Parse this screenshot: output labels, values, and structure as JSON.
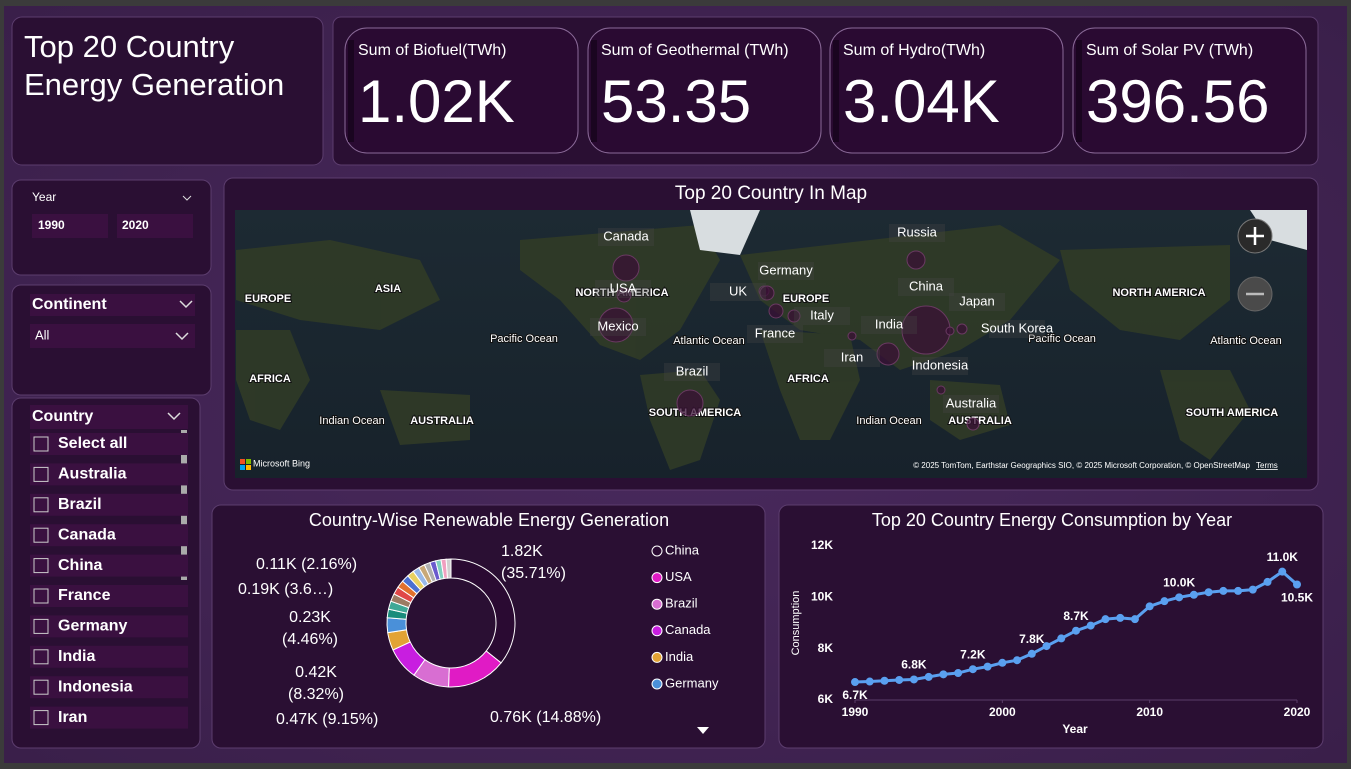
{
  "header": {
    "title": "Top 20 Country Energy Generation"
  },
  "kpis": [
    {
      "label": "Sum of Biofuel(TWh)",
      "value": "1.02K"
    },
    {
      "label": "Sum of Geothermal (TWh)",
      "value": "53.35"
    },
    {
      "label": "Sum of Hydro(TWh)",
      "value": "3.04K"
    },
    {
      "label": "Sum of Solar PV (TWh)",
      "value": "396.56"
    }
  ],
  "slicers": {
    "year": {
      "title": "Year",
      "from": "1990",
      "to": "2020"
    },
    "continent": {
      "title": "Continent",
      "selected": "All"
    },
    "country": {
      "title": "Country",
      "items": [
        "Select all",
        "Australia",
        "Brazil",
        "Canada",
        "China",
        "France",
        "Germany",
        "India",
        "Indonesia",
        "Iran"
      ]
    }
  },
  "map": {
    "title": "Top 20 Country In Map",
    "places": [
      {
        "name": "Canada",
        "size": 169
      },
      {
        "name": "USA",
        "size": 49
      },
      {
        "name": "Mexico",
        "size": 289
      },
      {
        "name": "Brazil",
        "size": 169
      },
      {
        "name": "UK",
        "size": 25
      },
      {
        "name": "Germany",
        "size": 49
      },
      {
        "name": "France",
        "size": 49
      },
      {
        "name": "Italy",
        "size": 36
      },
      {
        "name": "Russia",
        "size": 81
      },
      {
        "name": "China",
        "size": 576
      },
      {
        "name": "Japan",
        "size": 25
      },
      {
        "name": "South Korea",
        "size": 16
      },
      {
        "name": "India",
        "size": 121
      },
      {
        "name": "Iran",
        "size": 16
      },
      {
        "name": "Indonesia",
        "size": 16
      },
      {
        "name": "Australia",
        "size": 36
      }
    ],
    "regions": [
      "EUROPE",
      "ASIA",
      "NORTH AMERICA",
      "Pacific Ocean",
      "Atlantic Ocean",
      "AFRICA",
      "Indian Ocean",
      "AUSTRALIA",
      "SOUTH AMERICA",
      "EUROPE",
      "AFRICA",
      "Indian Ocean",
      "AUSTRALIA",
      "Pacific Ocean",
      "NORTH AMERICA",
      "Atlantic Ocean",
      "SOUTH AMERICA"
    ],
    "attribution": "Microsoft Bing",
    "copyright": "© 2025 TomTom, Earthstar Geographics SIO, © 2025 Microsoft Corporation, © OpenStreetMap",
    "terms": "Terms"
  },
  "chart_data": [
    {
      "type": "donut",
      "title": "Country-Wise Renewable Energy Generation",
      "categories": [
        "China",
        "USA",
        "Brazil",
        "Canada",
        "India",
        "Germany",
        null,
        null,
        null,
        null,
        null,
        null,
        null,
        null,
        null,
        null,
        null,
        null,
        null,
        null
      ],
      "values": [
        1820,
        760,
        470,
        420,
        230,
        190,
        110,
        105,
        100,
        100,
        95,
        95,
        90,
        85,
        80,
        75,
        75,
        70,
        65,
        62
      ],
      "value_labels": [
        "1.82K (35.71%)",
        "0.76K (14.88%)",
        "0.47K (9.15%)",
        "0.42K (8.32%)",
        "0.23K (4.46%)",
        "0.19K (3.6…)",
        "0.11K (2.16%)",
        null,
        null,
        null,
        null,
        null,
        null,
        null,
        null,
        null,
        null,
        null,
        null,
        null
      ],
      "colors": [
        "#2a0a32",
        "#e01bc5",
        "#d86ed2",
        "#c81ee0",
        "#e2a334",
        "#4a90d9",
        "#1a8c7c",
        "#3fa896",
        "#9c7b63",
        "#e04848",
        "#e2702c",
        "#4a6fd0",
        "#e8d060",
        "#98b8e8",
        "#c8a878",
        "#b0b0b0",
        "#6a5acd",
        "#80d0c0",
        "#f0a0c0",
        "#d0d0d0"
      ]
    },
    {
      "type": "line",
      "title": "Top 20 Country Energy Consumption by Year",
      "xlabel": "Year",
      "ylabel": "Consumption",
      "color": "#5aa0f0",
      "x": [
        1990,
        1991,
        1992,
        1993,
        1994,
        1995,
        1996,
        1997,
        1998,
        1999,
        2000,
        2001,
        2002,
        2003,
        2004,
        2005,
        2006,
        2007,
        2008,
        2009,
        2010,
        2011,
        2012,
        2013,
        2014,
        2015,
        2016,
        2017,
        2018,
        2019,
        2020
      ],
      "values": [
        6700,
        6720,
        6750,
        6780,
        6800,
        6900,
        7000,
        7050,
        7200,
        7300,
        7450,
        7550,
        7800,
        8100,
        8400,
        8700,
        8900,
        9150,
        9200,
        9150,
        9650,
        9850,
        10000,
        10100,
        10200,
        10250,
        10250,
        10300,
        10600,
        11000,
        10500
      ],
      "value_labels": [
        "6.7K",
        null,
        null,
        null,
        "6.8K",
        null,
        null,
        null,
        "7.2K",
        null,
        null,
        null,
        "7.8K",
        null,
        null,
        "8.7K",
        null,
        null,
        null,
        null,
        null,
        null,
        "10.0K",
        null,
        null,
        null,
        null,
        null,
        null,
        "11.0K",
        "10.5K"
      ],
      "xlim": [
        1990,
        2020
      ],
      "xticks": [
        1990,
        2000,
        2010,
        2020
      ],
      "ylim": [
        6000,
        12000
      ],
      "yticks": [
        {
          "value": 6000,
          "label": "6K"
        },
        {
          "value": 8000,
          "label": "8K"
        },
        {
          "value": 10000,
          "label": "10K"
        },
        {
          "value": 12000,
          "label": "12K"
        }
      ]
    }
  ]
}
